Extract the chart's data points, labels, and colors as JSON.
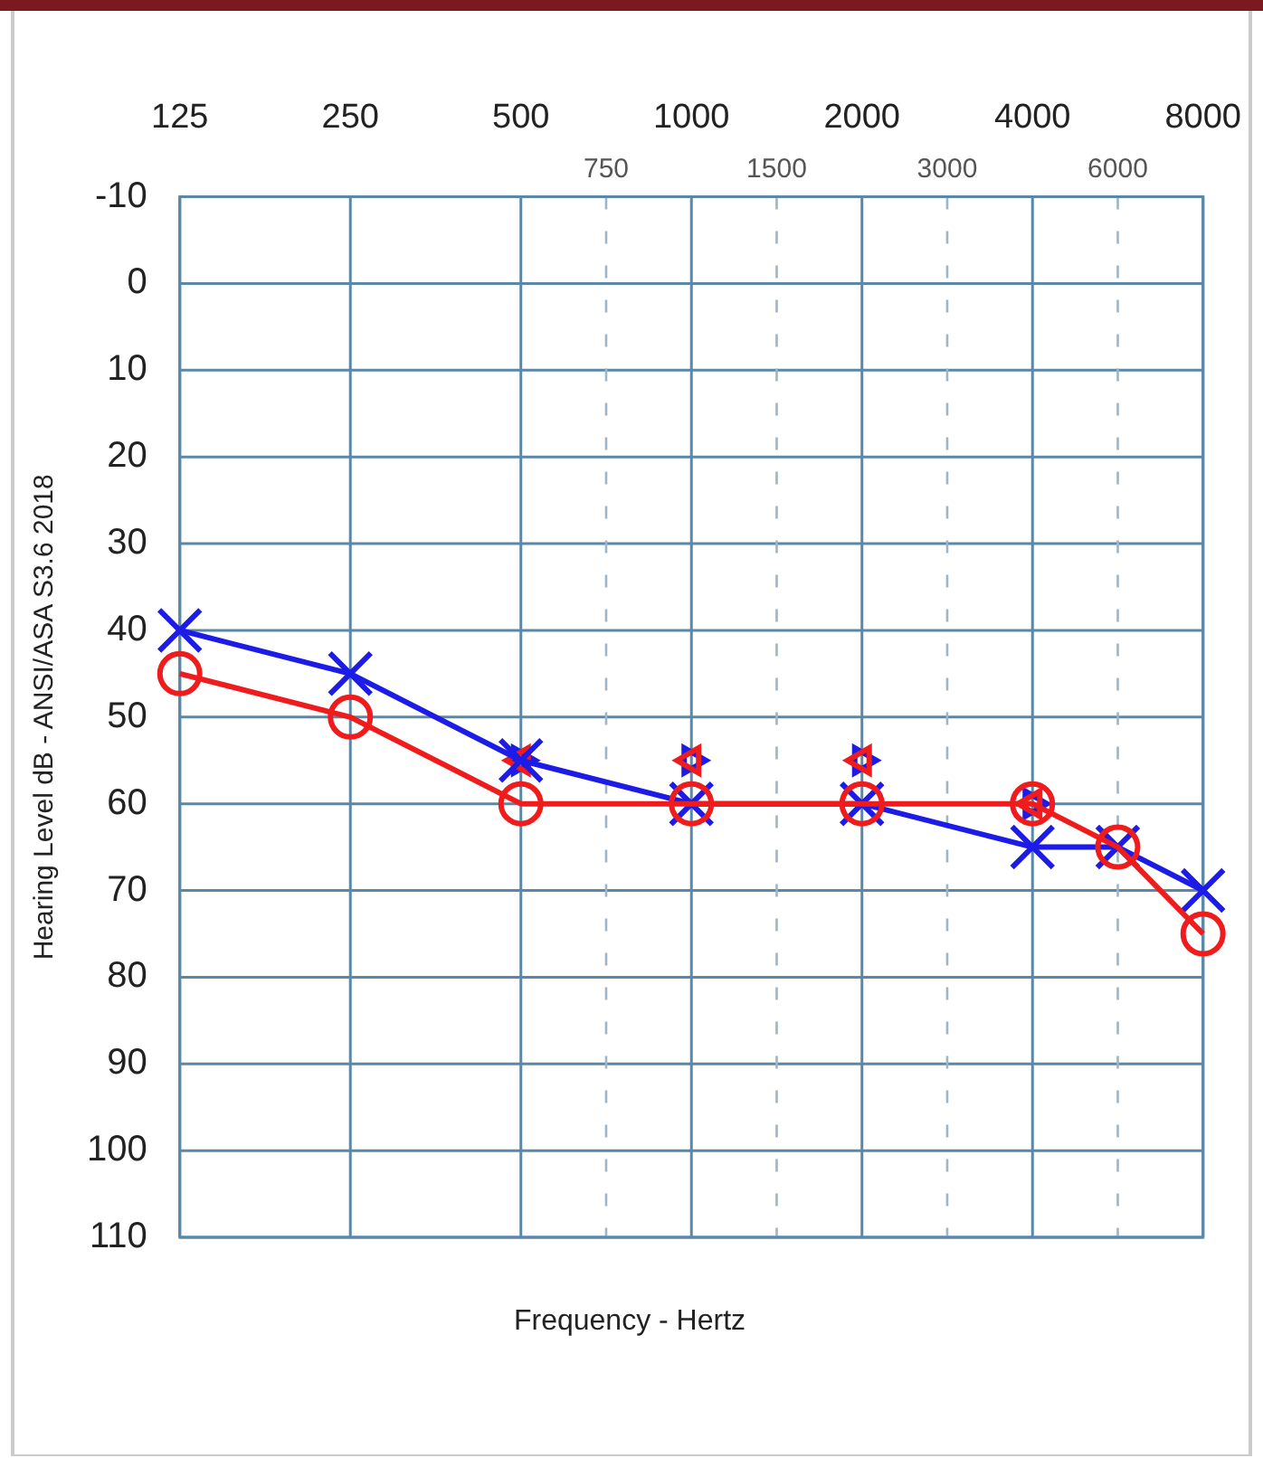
{
  "chart_data": {
    "type": "line",
    "xlabel": "Frequency - Hertz",
    "ylabel": "Hearing Level dB - ANSI/ASA S3.6 2018",
    "categories": [
      "125",
      null,
      "250",
      null,
      "500",
      "750",
      "1000",
      "1500",
      "2000",
      "3000",
      "4000",
      "6000",
      "8000"
    ],
    "ylim": [
      110,
      -10
    ],
    "yticks": [
      -10,
      0,
      10,
      20,
      30,
      40,
      50,
      60,
      70,
      80,
      90,
      100,
      110
    ],
    "grid": true,
    "legend": false,
    "series": [
      {
        "color": "#ee1c1c",
        "marker": "circle",
        "values": [
          45,
          null,
          50,
          null,
          60,
          null,
          60,
          null,
          60,
          null,
          60,
          65,
          75
        ]
      },
      {
        "color": "#1c1ce6",
        "marker": "cross",
        "values": [
          40,
          null,
          45,
          null,
          55,
          null,
          60,
          null,
          60,
          null,
          65,
          65,
          70
        ]
      },
      {
        "type": "scatter",
        "color": "#ee1c1c",
        "marker": "triangle",
        "values": [
          null,
          null,
          null,
          null,
          55,
          null,
          55,
          null,
          55,
          null,
          60,
          null,
          null
        ]
      },
      {
        "type": "scatter",
        "color": "#1c1ce6",
        "marker": "triangle",
        "values": [
          null,
          null,
          null,
          null,
          55,
          null,
          55,
          null,
          55,
          null,
          60,
          null,
          null
        ]
      }
    ]
  }
}
